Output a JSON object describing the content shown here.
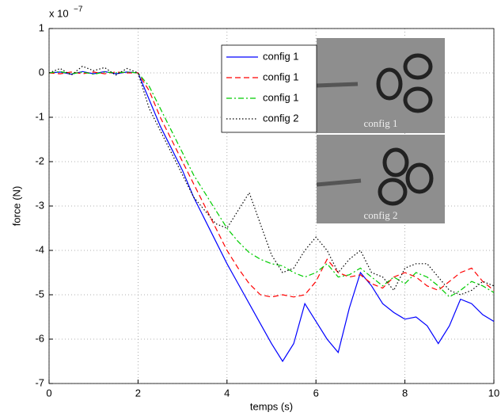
{
  "chart_data": {
    "type": "line",
    "y_label": "force (N)",
    "x_label": "temps (s)",
    "y_multiplier": {
      "base": "x 10",
      "exponent": "−7"
    },
    "x": [
      0,
      0.25,
      0.5,
      0.75,
      1,
      1.25,
      1.5,
      1.75,
      2,
      2.25,
      2.5,
      2.75,
      3,
      3.25,
      3.5,
      3.75,
      4,
      4.25,
      4.5,
      4.75,
      5,
      5.25,
      5.5,
      5.75,
      6,
      6.25,
      6.5,
      6.75,
      7,
      7.25,
      7.5,
      7.75,
      8,
      8.25,
      8.5,
      8.75,
      9,
      9.25,
      9.5,
      9.75,
      10
    ],
    "series": [
      {
        "name": "config 1",
        "color": "#0000ff",
        "style": "solid",
        "values": [
          0,
          0.02,
          -0.03,
          0.03,
          -0.02,
          0.03,
          -0.02,
          0.02,
          0,
          -0.6,
          -1.2,
          -1.7,
          -2.2,
          -2.8,
          -3.3,
          -3.8,
          -4.3,
          -4.75,
          -5.2,
          -5.65,
          -6.1,
          -6.5,
          -6.1,
          -5.2,
          -5.6,
          -6.0,
          -6.3,
          -5.3,
          -4.5,
          -4.8,
          -5.2,
          -5.4,
          -5.55,
          -5.5,
          -5.7,
          -6.1,
          -5.7,
          -5.1,
          -5.2,
          -5.45,
          -5.6
        ]
      },
      {
        "name": "config 1",
        "color": "#ff0000",
        "style": "dashed",
        "values": [
          0,
          -0.02,
          0.02,
          -0.02,
          0.02,
          -0.02,
          0.02,
          0,
          0,
          -0.4,
          -1.0,
          -1.5,
          -2.0,
          -2.5,
          -3.0,
          -3.5,
          -4.0,
          -4.4,
          -4.75,
          -5.0,
          -5.05,
          -5.0,
          -5.05,
          -5.0,
          -4.7,
          -4.2,
          -4.5,
          -4.6,
          -4.55,
          -4.75,
          -4.85,
          -4.6,
          -4.5,
          -4.6,
          -4.8,
          -4.9,
          -4.7,
          -4.5,
          -4.4,
          -4.7,
          -4.9
        ]
      },
      {
        "name": "config 1",
        "color": "#00cc00",
        "style": "dashdot",
        "values": [
          0,
          0.03,
          -0.02,
          0.02,
          -0.03,
          0.02,
          0,
          0.02,
          0,
          -0.3,
          -0.8,
          -1.3,
          -1.8,
          -2.3,
          -2.7,
          -3.1,
          -3.5,
          -3.8,
          -4.05,
          -4.2,
          -4.3,
          -4.35,
          -4.5,
          -4.6,
          -4.5,
          -4.3,
          -4.6,
          -4.55,
          -4.4,
          -4.6,
          -4.8,
          -4.6,
          -4.75,
          -4.5,
          -4.6,
          -4.8,
          -5.05,
          -4.9,
          -4.7,
          -4.8,
          -4.95
        ]
      },
      {
        "name": "config 2",
        "color": "#000000",
        "style": "dotted",
        "values": [
          0,
          0.1,
          -0.05,
          0.15,
          0.05,
          0.12,
          -0.05,
          0.1,
          0,
          -0.8,
          -1.3,
          -1.8,
          -2.3,
          -2.8,
          -3.1,
          -3.4,
          -3.5,
          -3.1,
          -2.7,
          -3.4,
          -4.1,
          -4.5,
          -4.4,
          -4.0,
          -3.7,
          -4.0,
          -4.5,
          -4.2,
          -4.0,
          -4.5,
          -4.6,
          -4.9,
          -4.4,
          -4.3,
          -4.3,
          -4.6,
          -4.9,
          -5.0,
          -4.9,
          -4.7,
          -4.8
        ]
      }
    ],
    "xlim": [
      0,
      10
    ],
    "xticks": [
      0,
      2,
      4,
      6,
      8,
      10
    ],
    "ylim": [
      -7,
      1
    ],
    "yticks": [
      -7,
      -6,
      -5,
      -4,
      -3,
      -2,
      -1,
      0,
      1
    ],
    "grid": true,
    "insets": [
      {
        "label": "config 1"
      },
      {
        "label": "config 2"
      }
    ]
  }
}
